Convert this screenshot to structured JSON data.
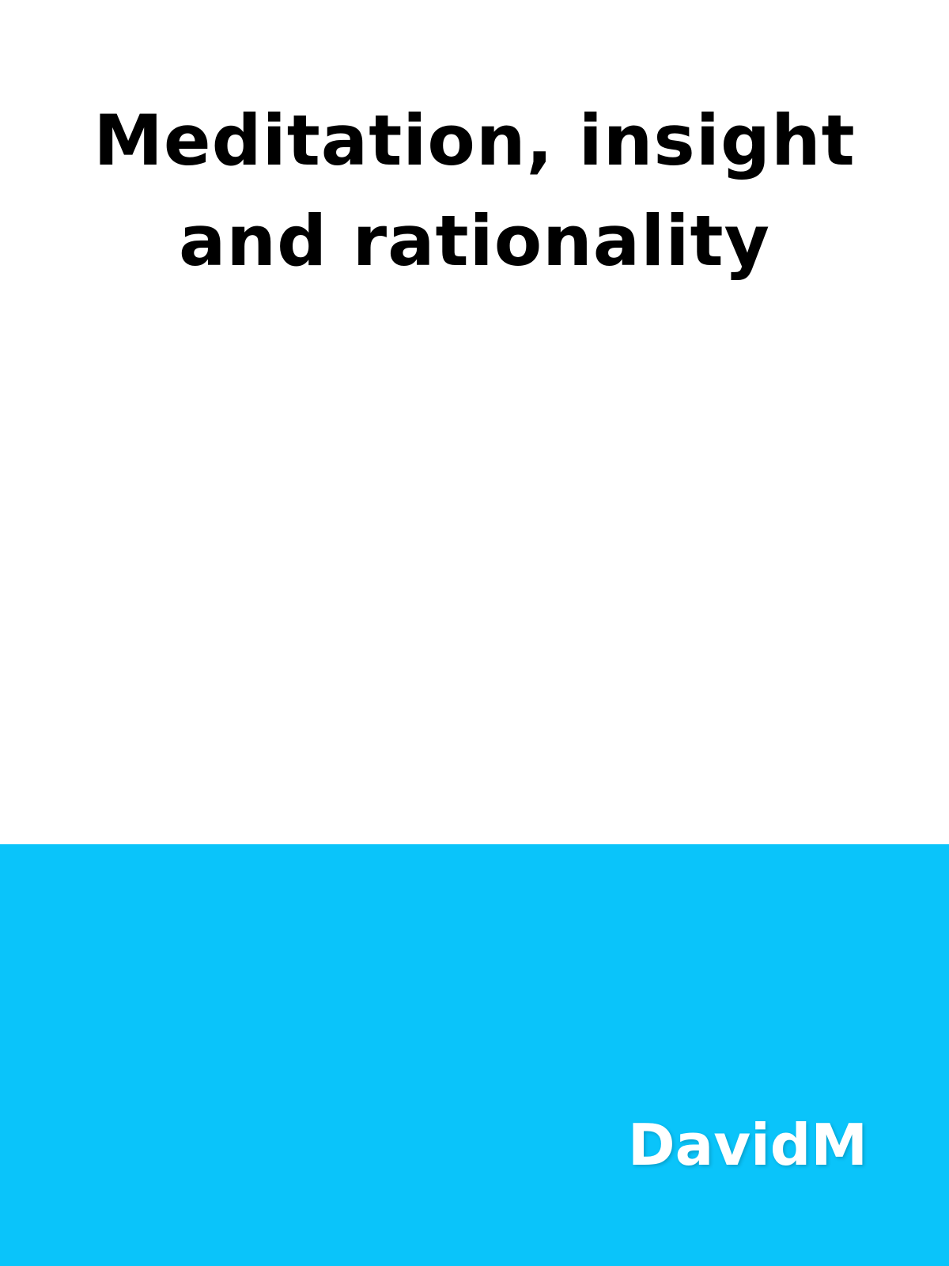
{
  "book": {
    "title": "Meditation, insight and rationality",
    "author": "DavidM"
  },
  "colors": {
    "background": "#ffffff",
    "band": "#0ac4fa",
    "title_text": "#000000",
    "author_text": "#ffffff"
  }
}
